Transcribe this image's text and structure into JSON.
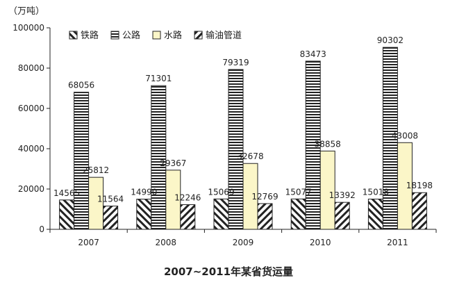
{
  "chart_data": {
    "type": "bar",
    "title": "2007~2011年某省货运量",
    "ylabel": "（万吨）",
    "xlabel": "",
    "categories": [
      "2007",
      "2008",
      "2009",
      "2010",
      "2011"
    ],
    "series": [
      {
        "name": "铁路",
        "values": [
          14565,
          14990,
          15069,
          15077,
          15018
        ],
        "pattern": "diagonal-back"
      },
      {
        "name": "公路",
        "values": [
          68056,
          71301,
          79319,
          83473,
          90302
        ],
        "pattern": "horizontal"
      },
      {
        "name": "水路",
        "values": [
          25812,
          29367,
          32678,
          38858,
          43008
        ],
        "pattern": "solid-yellow"
      },
      {
        "name": "输油管道",
        "values": [
          11564,
          12246,
          12769,
          13392,
          18198
        ],
        "pattern": "diagonal-forward"
      }
    ],
    "ylim": [
      0,
      100000
    ],
    "yticks": [
      0,
      20000,
      40000,
      60000,
      80000,
      100000
    ],
    "grid": false,
    "legend_position": "top-left",
    "colors": {
      "yellow_fill": "#fbf6c8",
      "stroke": "#222222"
    }
  }
}
